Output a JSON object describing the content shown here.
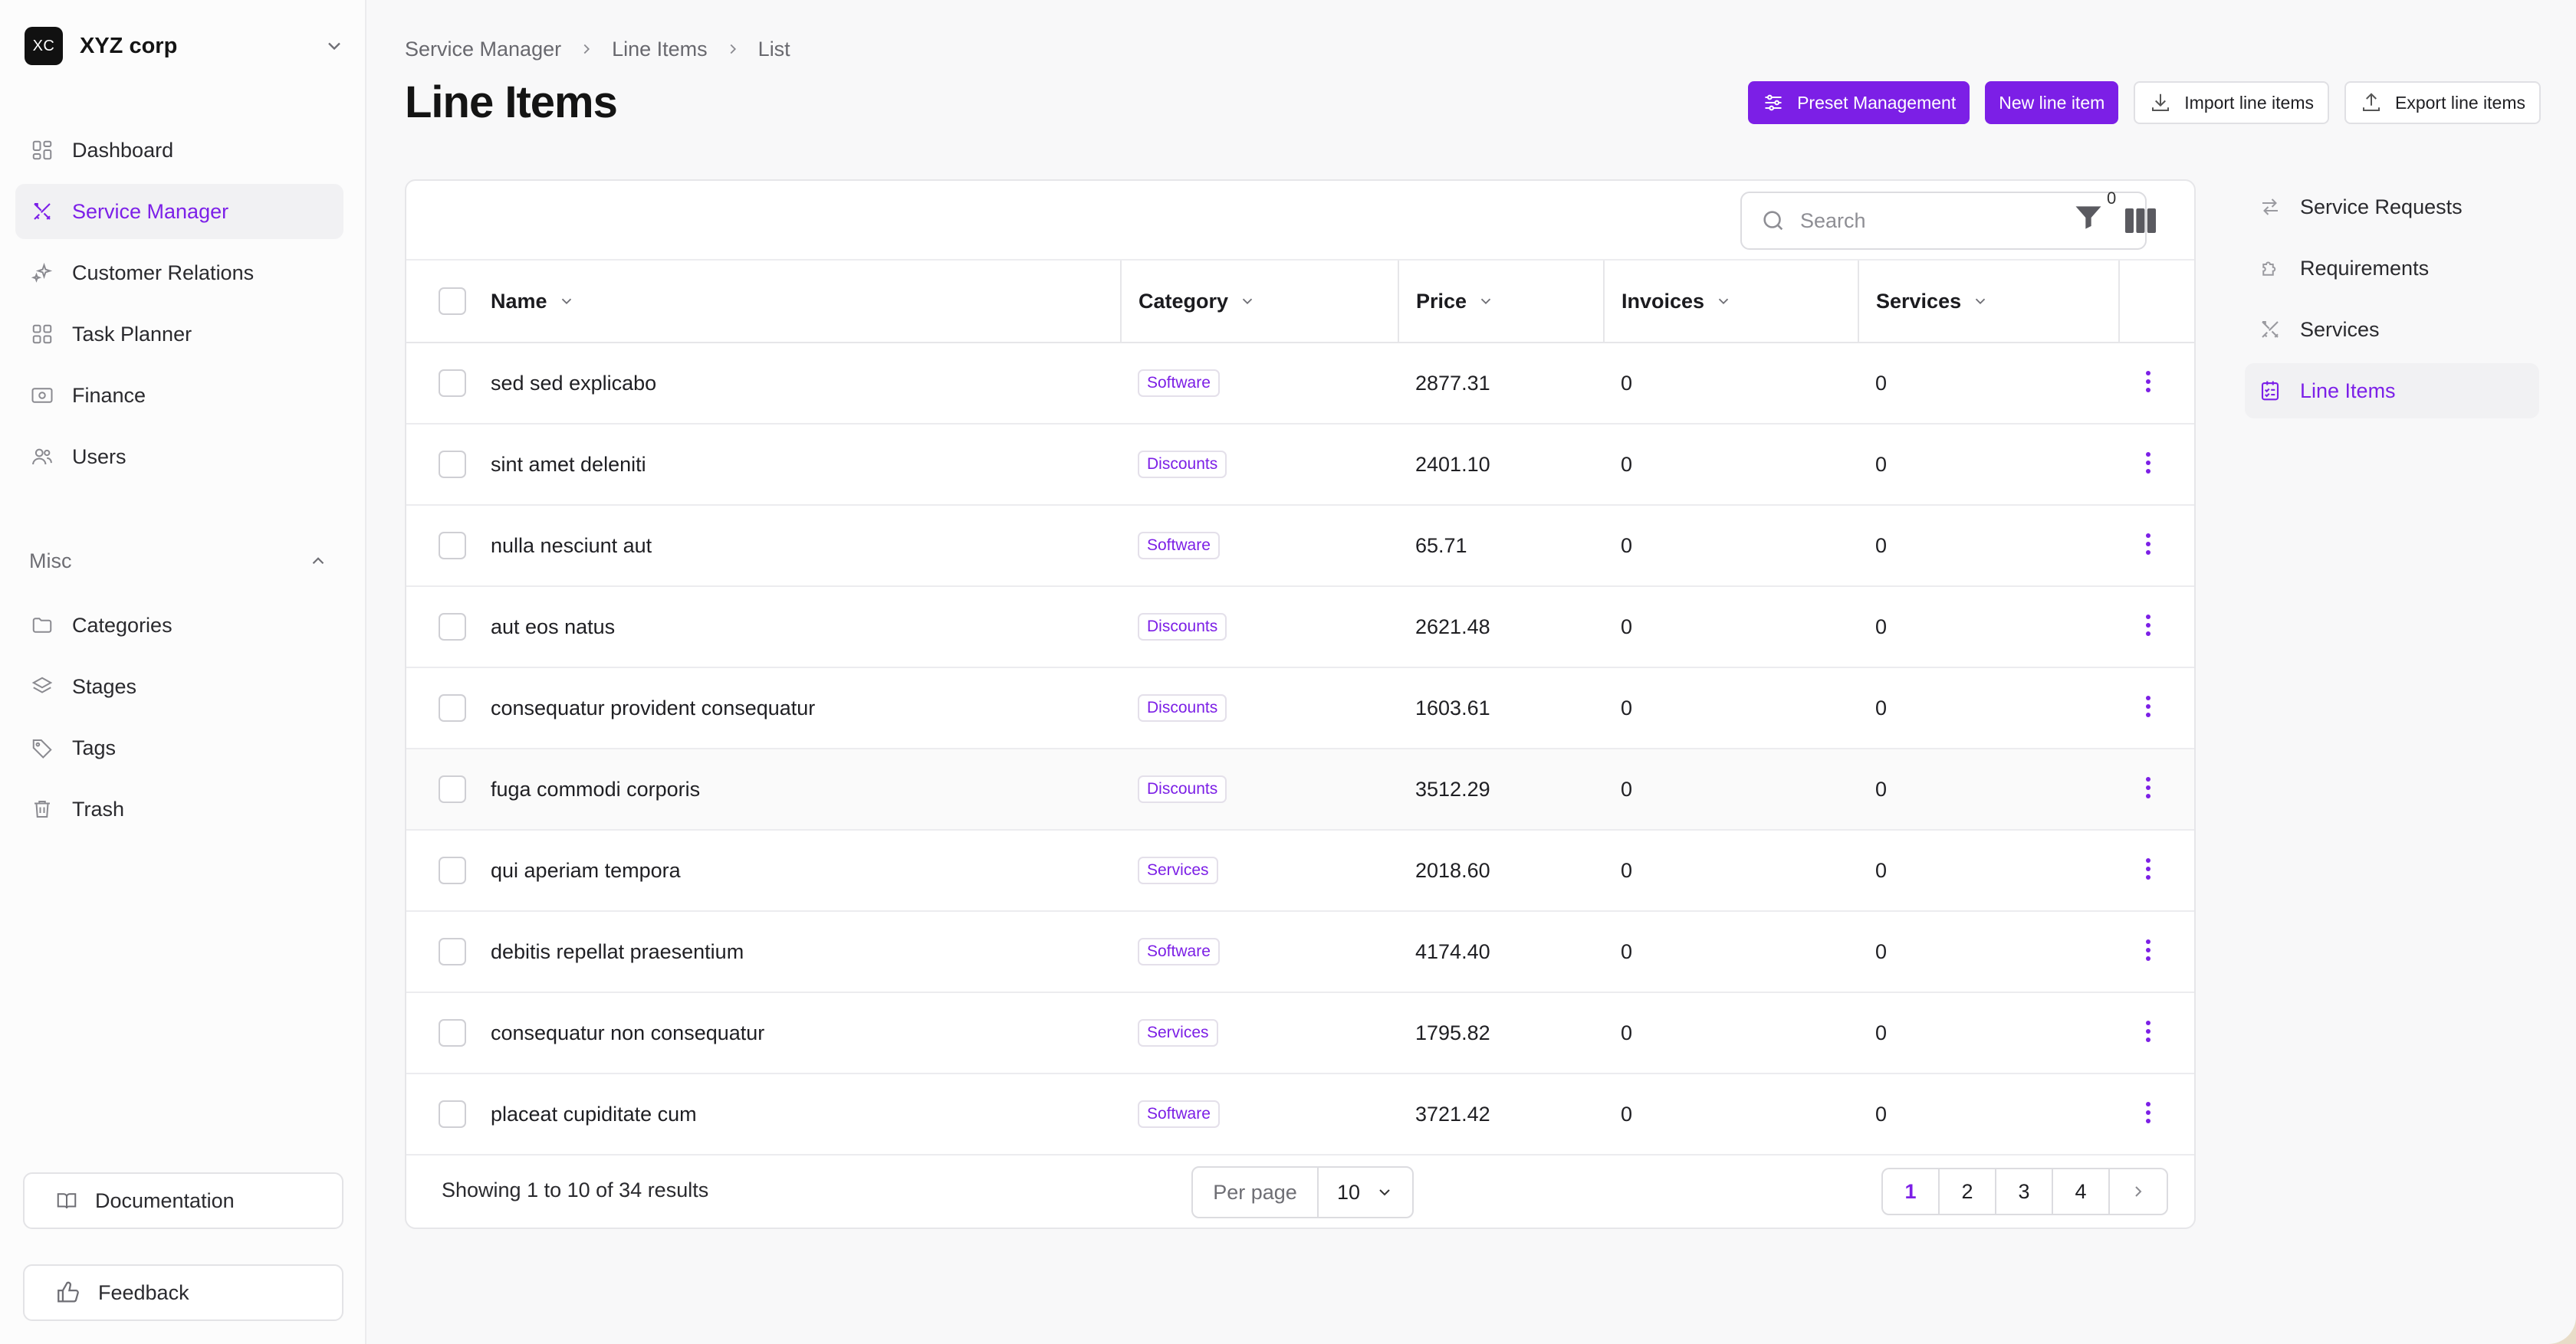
{
  "org": {
    "logo": "XC",
    "name": "XYZ corp",
    "logo_icon": "org-logo"
  },
  "sidebar": {
    "items": [
      {
        "label": "Dashboard",
        "icon": "dashboard-icon"
      },
      {
        "label": "Service Manager",
        "icon": "tools-icon",
        "active": true
      },
      {
        "label": "Customer Relations",
        "icon": "sparkle-icon"
      },
      {
        "label": "Task Planner",
        "icon": "grid-icon"
      },
      {
        "label": "Finance",
        "icon": "banknote-icon"
      },
      {
        "label": "Users",
        "icon": "users-icon"
      }
    ],
    "misc_label": "Misc",
    "misc_items": [
      {
        "label": "Categories",
        "icon": "folder-icon"
      },
      {
        "label": "Stages",
        "icon": "layers-icon"
      },
      {
        "label": "Tags",
        "icon": "tag-icon"
      },
      {
        "label": "Trash",
        "icon": "trash-icon"
      }
    ],
    "documentation": "Documentation",
    "feedback": "Feedback"
  },
  "breadcrumb": [
    "Service Manager",
    "Line Items",
    "List"
  ],
  "page_title": "Line Items",
  "actions": {
    "preset": "Preset Management",
    "new": "New line item",
    "import": "Import line items",
    "export": "Export line items"
  },
  "toolbar": {
    "search_placeholder": "Search",
    "filter_count": "0"
  },
  "table": {
    "columns": [
      "Name",
      "Category",
      "Price",
      "Invoices",
      "Services"
    ],
    "rows": [
      {
        "name": "sed sed explicabo",
        "category": "Software",
        "price": "2877.31",
        "invoices": "0",
        "services": "0"
      },
      {
        "name": "sint amet deleniti",
        "category": "Discounts",
        "price": "2401.10",
        "invoices": "0",
        "services": "0"
      },
      {
        "name": "nulla nesciunt aut",
        "category": "Software",
        "price": "65.71",
        "invoices": "0",
        "services": "0"
      },
      {
        "name": "aut eos natus",
        "category": "Discounts",
        "price": "2621.48",
        "invoices": "0",
        "services": "0"
      },
      {
        "name": "consequatur provident consequatur",
        "category": "Discounts",
        "price": "1603.61",
        "invoices": "0",
        "services": "0"
      },
      {
        "name": "fuga commodi corporis",
        "category": "Discounts",
        "price": "3512.29",
        "invoices": "0",
        "services": "0"
      },
      {
        "name": "qui aperiam tempora",
        "category": "Services",
        "price": "2018.60",
        "invoices": "0",
        "services": "0"
      },
      {
        "name": "debitis repellat praesentium",
        "category": "Software",
        "price": "4174.40",
        "invoices": "0",
        "services": "0"
      },
      {
        "name": "consequatur non consequatur",
        "category": "Services",
        "price": "1795.82",
        "invoices": "0",
        "services": "0"
      },
      {
        "name": "placeat cupiditate cum",
        "category": "Software",
        "price": "3721.42",
        "invoices": "0",
        "services": "0"
      }
    ]
  },
  "footer": {
    "showing": "Showing 1 to 10 of 34 results",
    "per_page_label": "Per page",
    "per_page_value": "10",
    "pages": [
      "1",
      "2",
      "3",
      "4"
    ],
    "current_page": "1"
  },
  "subnav": {
    "items": [
      {
        "label": "Service Requests",
        "icon": "arrows-icon"
      },
      {
        "label": "Requirements",
        "icon": "puzzle-icon"
      },
      {
        "label": "Services",
        "icon": "tools-icon"
      },
      {
        "label": "Line Items",
        "icon": "checklist-icon",
        "active": true
      }
    ]
  },
  "colors": {
    "accent": "#7c1fe6",
    "border": "#e6e6e9"
  }
}
